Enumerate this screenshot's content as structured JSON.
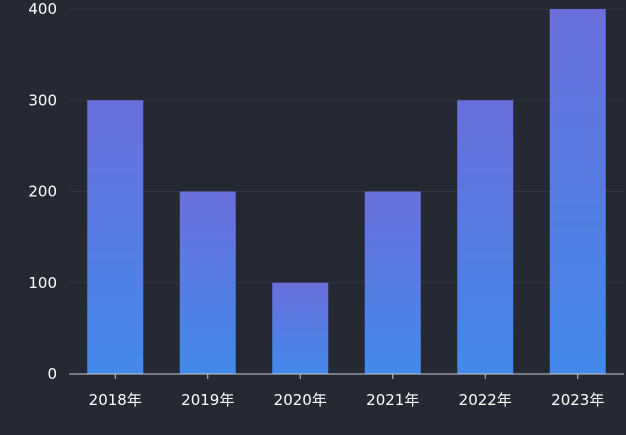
{
  "chart_data": {
    "type": "bar",
    "categories": [
      "2018年",
      "2019年",
      "2020年",
      "2021年",
      "2022年",
      "2023年"
    ],
    "values": [
      300,
      200,
      100,
      200,
      300,
      400
    ],
    "title": "",
    "xlabel": "",
    "ylabel": "",
    "ylim": [
      0,
      400
    ],
    "yticks": [
      0,
      100,
      200,
      300,
      400
    ],
    "grid": true,
    "legend": "none",
    "colors": {
      "background": "#252934",
      "bar_top": "#6a6fdc",
      "bar_bottom": "#4289ea",
      "grid": "#2f3442",
      "axis": "#c9ccd3",
      "text": "#ffffff"
    }
  }
}
